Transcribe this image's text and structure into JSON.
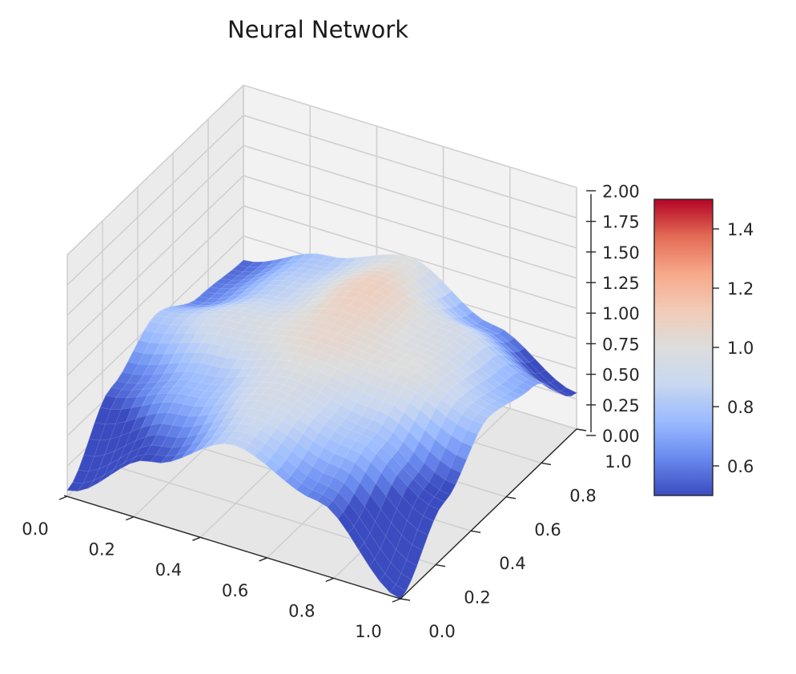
{
  "chart_data": {
    "type": "surface3d",
    "title": "Neural Network",
    "xlabel": "",
    "ylabel": "",
    "zlabel": "",
    "colormap": "coolwarm",
    "x_range": [
      0.0,
      1.0
    ],
    "y_range": [
      0.0,
      1.0
    ],
    "zlim": [
      0.0,
      2.0
    ],
    "x_ticks": [
      "0.0",
      "0.2",
      "0.4",
      "0.6",
      "0.8",
      "1.0"
    ],
    "y_ticks": [
      "0.0",
      "0.2",
      "0.4",
      "0.6",
      "0.8",
      "1.0"
    ],
    "z_ticks": [
      "0.00",
      "0.25",
      "0.50",
      "0.75",
      "1.00",
      "1.25",
      "1.50",
      "1.75",
      "2.00"
    ],
    "colorbar": {
      "range": [
        0.5,
        1.5
      ],
      "ticks": [
        "0.6",
        "0.8",
        "1.0",
        "1.2",
        "1.4"
      ],
      "colors": [
        "#3b4cc0",
        "#6889ee",
        "#9abbff",
        "#c9d7f0",
        "#dcdddd",
        "#f2cbb7",
        "#f7a889",
        "#e36b55",
        "#b40426"
      ]
    },
    "surface": {
      "grid_x": [
        0.0,
        0.25,
        0.5,
        0.75,
        1.0
      ],
      "grid_y": [
        0.0,
        0.25,
        0.5,
        0.75,
        1.0
      ],
      "z": [
        [
          0.05,
          0.55,
          0.8,
          0.6,
          0.55
        ],
        [
          0.5,
          0.75,
          0.95,
          0.85,
          0.8
        ],
        [
          0.85,
          0.95,
          1.05,
          1.1,
          1.0
        ],
        [
          0.6,
          0.8,
          1.0,
          0.95,
          0.65
        ],
        [
          0.0,
          0.45,
          0.8,
          0.7,
          0.3
        ]
      ]
    },
    "grid": true
  }
}
